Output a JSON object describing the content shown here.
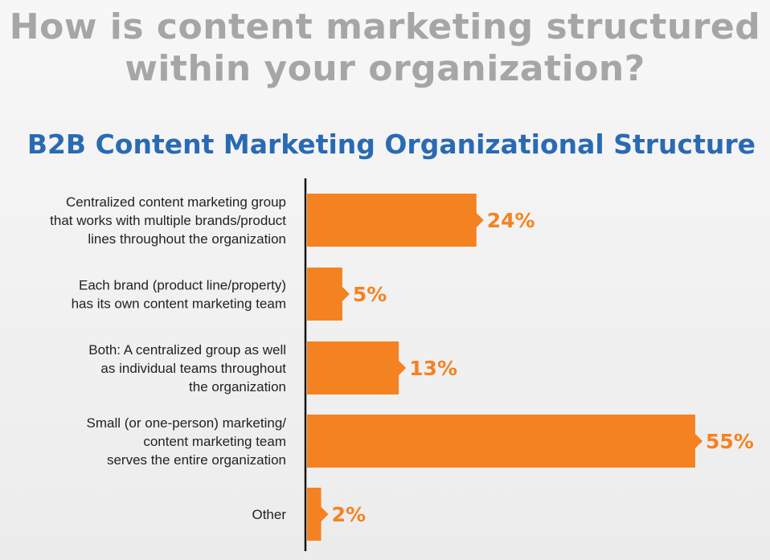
{
  "headline": [
    "How is content marketing structured",
    "within your organization?"
  ],
  "colors": {
    "bar": "#f58220",
    "value_text": "#f58220",
    "headline": "#a6a6a6",
    "title": "#2a6ab3",
    "axis": "#111111"
  },
  "chart_data": {
    "type": "bar",
    "orientation": "horizontal",
    "title": "B2B Content Marketing Organizational Structure",
    "categories": [
      [
        "Centralized content marketing group",
        "that works with multiple brands/product",
        "lines throughout the organization"
      ],
      [
        "Each brand (product line/property)",
        "has its own content marketing team"
      ],
      [
        "Both: A centralized group as well",
        "as individual teams throughout",
        "the organization"
      ],
      [
        "Small (or one-person) marketing/",
        "content marketing team",
        "serves the entire organization"
      ],
      [
        "Other"
      ]
    ],
    "values": [
      24,
      5,
      13,
      55,
      2
    ],
    "value_labels": [
      "24%",
      "5%",
      "13%",
      "55%",
      "2%"
    ],
    "unit": "%",
    "xlim": [
      0,
      55
    ],
    "grid": false,
    "legend": "none"
  }
}
